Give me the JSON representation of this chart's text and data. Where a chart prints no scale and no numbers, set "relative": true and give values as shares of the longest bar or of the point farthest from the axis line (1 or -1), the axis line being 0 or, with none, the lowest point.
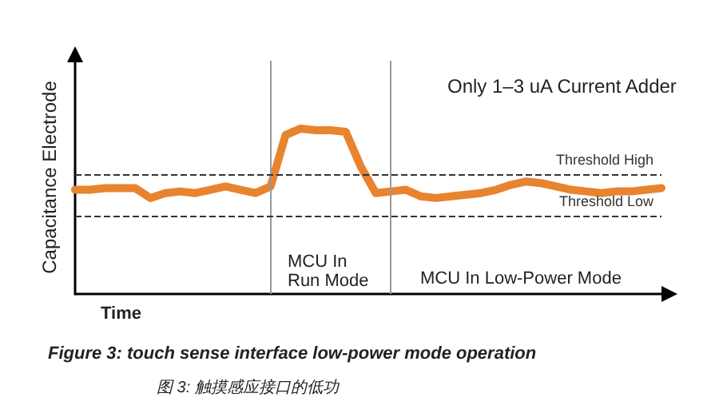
{
  "chart_data": {
    "type": "line",
    "relative": true,
    "xlabel": "Time",
    "ylabel": "Capacitance Electrode",
    "categories": [
      null,
      null,
      null,
      null,
      null,
      null,
      null,
      null,
      null,
      null,
      null,
      null,
      null,
      null,
      null,
      null,
      null,
      null,
      null,
      null,
      null,
      null,
      null,
      null,
      null,
      null,
      null,
      null,
      null,
      null,
      null,
      null,
      null,
      null,
      null,
      null,
      null,
      null,
      null,
      null
    ],
    "series": [
      {
        "color": "#e8832f",
        "values": [
          0.63,
          0.63,
          0.64,
          0.64,
          0.64,
          0.58,
          0.61,
          0.62,
          0.61,
          0.63,
          0.65,
          0.63,
          0.61,
          0.65,
          0.96,
          1,
          0.99,
          0.99,
          0.98,
          0.77,
          0.61,
          0.62,
          0.63,
          0.59,
          0.58,
          0.59,
          0.6,
          0.61,
          0.63,
          0.66,
          0.68,
          0.67,
          0.65,
          0.63,
          0.62,
          0.61,
          0.62,
          0.62,
          0.63,
          0.64
        ]
      }
    ],
    "ref_lines": [
      {
        "axis": "y",
        "value": 0.72,
        "label": "Threshold High",
        "color": "#333333",
        "line_style": "dashed"
      },
      {
        "axis": "y",
        "value": 0.47,
        "label": "Threshold Low",
        "color": "#333333",
        "line_style": "dashed"
      }
    ],
    "annotations": [
      "Only 1–3 uA Current Adder",
      "MCU In Run Mode",
      "MCU In Low-Power Mode",
      "Figure 3: touch sense interface low-power mode operation",
      "图 3: 触摸感应接口的低功"
    ],
    "grid": false,
    "marker": "none",
    "line_style": "solid"
  }
}
